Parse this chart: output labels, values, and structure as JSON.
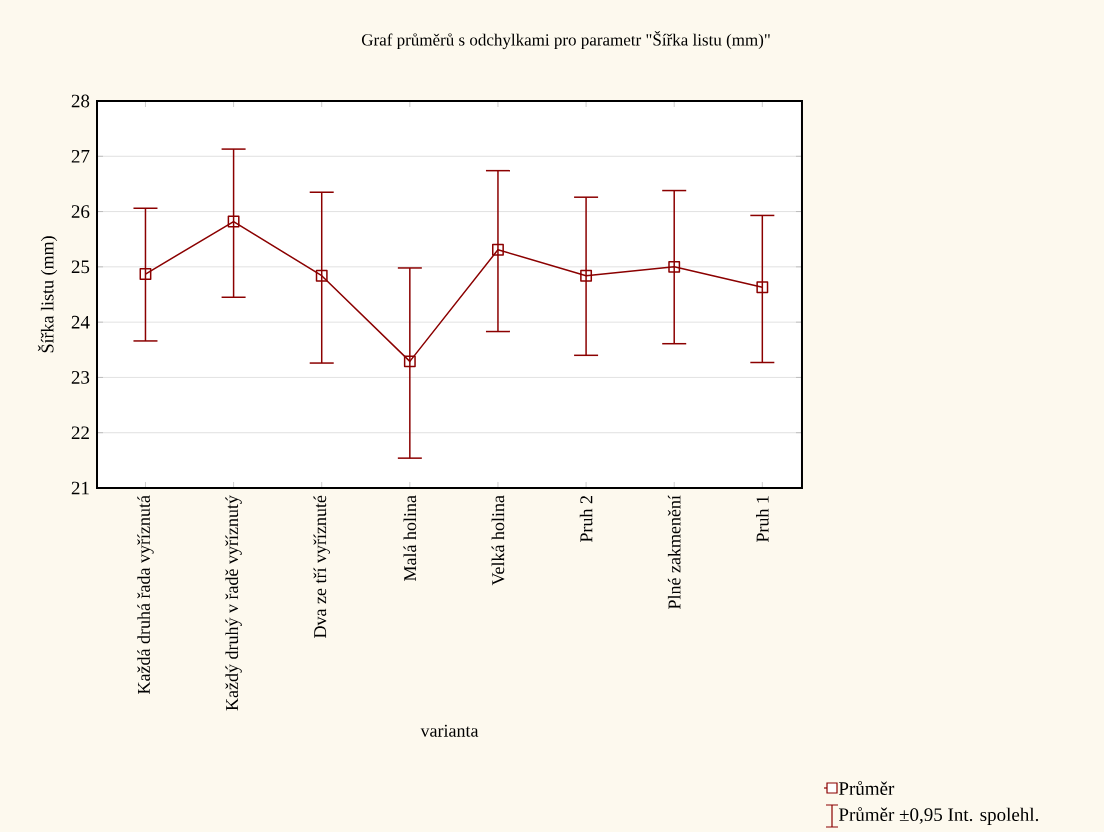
{
  "chart_data": {
    "type": "line",
    "title": "Graf průměrů s odchylkami pro parametr \"Šířka listu (mm)\"",
    "xlabel": "varianta",
    "ylabel": "Šířka listu (mm)",
    "categories": [
      "Každá druhá řada vyříznutá",
      "Každý druhý v řadě vyříznutý",
      "Dva ze tří vyříznuté",
      "Malá holina",
      "Velká holina",
      "Pruh 2",
      "Plné zakmenění",
      "Pruh 1"
    ],
    "series": [
      {
        "name": "Průměr",
        "color": "#8b0000",
        "values": [
          24.87,
          25.82,
          24.84,
          23.29,
          25.31,
          24.84,
          25.0,
          24.63
        ],
        "errors": [
          [
            23.66,
            26.06
          ],
          [
            24.45,
            27.13
          ],
          [
            23.26,
            26.35
          ],
          [
            21.54,
            24.98
          ],
          [
            23.83,
            26.74
          ],
          [
            23.4,
            26.26
          ],
          [
            23.61,
            26.38
          ],
          [
            23.27,
            25.93
          ]
        ]
      }
    ],
    "ylim": [
      21,
      28
    ],
    "yticks": [
      21,
      22,
      23,
      24,
      25,
      26,
      27,
      28
    ],
    "grid": "y",
    "marker": "square",
    "line_style": "solid",
    "legend": "bottom right",
    "annotations": [
      "Průměr ±0,95 Int. spolehl."
    ]
  }
}
